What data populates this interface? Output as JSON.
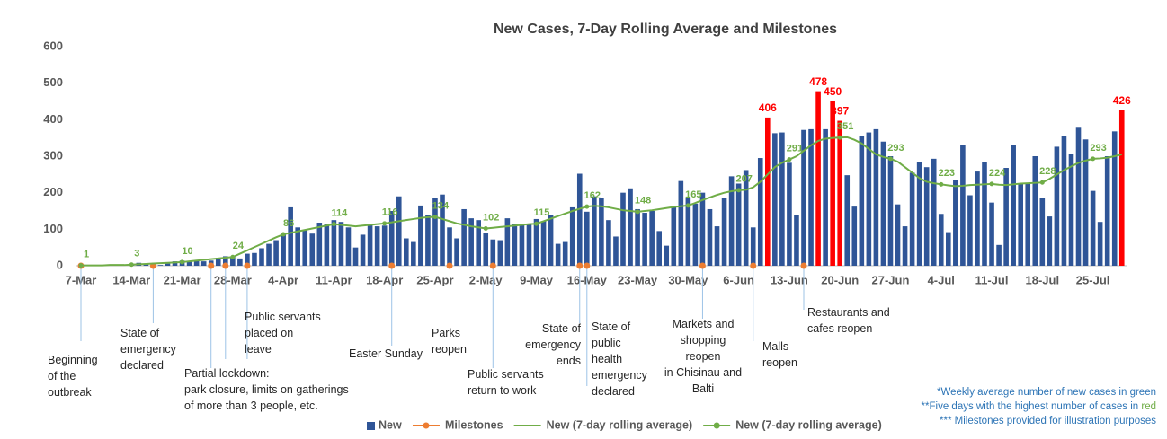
{
  "chart_data": {
    "type": "bar",
    "title": "New Cases, 7-Day Rolling Average and Milestones",
    "categories": [
      "7-Mar",
      null,
      null,
      null,
      null,
      null,
      null,
      "14-Mar",
      null,
      null,
      null,
      null,
      null,
      null,
      "21-Mar",
      null,
      null,
      null,
      null,
      null,
      null,
      "28-Mar",
      null,
      null,
      null,
      null,
      null,
      null,
      "4-Apr",
      null,
      null,
      null,
      null,
      null,
      null,
      "11-Apr",
      null,
      null,
      null,
      null,
      null,
      null,
      "18-Apr",
      null,
      null,
      null,
      null,
      null,
      null,
      "25-Apr",
      null,
      null,
      null,
      null,
      null,
      null,
      "2-May",
      null,
      null,
      null,
      null,
      null,
      null,
      "9-May",
      null,
      null,
      null,
      null,
      null,
      null,
      "16-May",
      null,
      null,
      null,
      null,
      null,
      null,
      "23-May",
      null,
      null,
      null,
      null,
      null,
      null,
      "30-May",
      null,
      null,
      null,
      null,
      null,
      null,
      "6-Jun",
      null,
      null,
      null,
      null,
      null,
      null,
      "13-Jun",
      null,
      null,
      null,
      null,
      null,
      null,
      "20-Jun",
      null,
      null,
      null,
      null,
      null,
      null,
      "27-Jun",
      null,
      null,
      null,
      null,
      null,
      null,
      "4-Jul",
      null,
      null,
      null,
      null,
      null,
      null,
      "11-Jul",
      null,
      null,
      null,
      null,
      null,
      null,
      "18-Jul",
      null,
      null,
      null,
      null,
      null,
      null,
      "25-Jul",
      null,
      null,
      null,
      null
    ],
    "ylim": [
      0,
      600
    ],
    "yticks": [
      0,
      100,
      200,
      300,
      400,
      500,
      600
    ],
    "series": [
      {
        "name": "New",
        "type": "bar",
        "color": "#2f5597",
        "label_color": "#ff0000",
        "values": [
          1,
          0,
          0,
          0,
          0,
          0,
          1,
          3,
          8,
          6,
          2,
          2,
          6,
          12,
          14,
          13,
          15,
          12,
          14,
          22,
          26,
          25,
          20,
          33,
          35,
          48,
          60,
          70,
          85,
          160,
          105,
          98,
          88,
          118,
          115,
          125,
          120,
          105,
          50,
          85,
          115,
          108,
          110,
          150,
          190,
          75,
          65,
          165,
          140,
          185,
          195,
          105,
          75,
          155,
          130,
          125,
          90,
          72,
          70,
          130,
          115,
          112,
          115,
          128,
          122,
          140,
          60,
          65,
          160,
          252,
          148,
          190,
          185,
          125,
          80,
          200,
          212,
          155,
          145,
          150,
          95,
          55,
          160,
          232,
          188,
          170,
          200,
          155,
          108,
          185,
          245,
          225,
          262,
          105,
          295,
          406,
          363,
          365,
          282,
          138,
          372,
          374,
          478,
          374,
          450,
          397,
          248,
          162,
          355,
          365,
          374,
          340,
          300,
          168,
          108,
          255,
          283,
          270,
          293,
          142,
          92,
          235,
          330,
          193,
          258,
          285,
          173,
          57,
          268,
          330,
          226,
          226,
          300,
          185,
          135,
          326,
          356,
          305,
          378,
          346,
          205,
          120,
          300,
          368,
          426
        ],
        "colors": [
          "#2f5597",
          "#2f5597",
          "#2f5597",
          "#2f5597",
          "#2f5597",
          "#2f5597",
          "#2f5597",
          "#2f5597",
          "#2f5597",
          "#2f5597",
          "#2f5597",
          "#2f5597",
          "#2f5597",
          "#2f5597",
          "#2f5597",
          "#2f5597",
          "#2f5597",
          "#2f5597",
          "#2f5597",
          "#2f5597",
          "#2f5597",
          "#2f5597",
          "#2f5597",
          "#2f5597",
          "#2f5597",
          "#2f5597",
          "#2f5597",
          "#2f5597",
          "#2f5597",
          "#2f5597",
          "#2f5597",
          "#2f5597",
          "#2f5597",
          "#2f5597",
          "#2f5597",
          "#2f5597",
          "#2f5597",
          "#2f5597",
          "#2f5597",
          "#2f5597",
          "#2f5597",
          "#2f5597",
          "#2f5597",
          "#2f5597",
          "#2f5597",
          "#2f5597",
          "#2f5597",
          "#2f5597",
          "#2f5597",
          "#2f5597",
          "#2f5597",
          "#2f5597",
          "#2f5597",
          "#2f5597",
          "#2f5597",
          "#2f5597",
          "#2f5597",
          "#2f5597",
          "#2f5597",
          "#2f5597",
          "#2f5597",
          "#2f5597",
          "#2f5597",
          "#2f5597",
          "#2f5597",
          "#2f5597",
          "#2f5597",
          "#2f5597",
          "#2f5597",
          "#2f5597",
          "#2f5597",
          "#2f5597",
          "#2f5597",
          "#2f5597",
          "#2f5597",
          "#2f5597",
          "#2f5597",
          "#2f5597",
          "#2f5597",
          "#2f5597",
          "#2f5597",
          "#2f5597",
          "#2f5597",
          "#2f5597",
          "#2f5597",
          "#2f5597",
          "#2f5597",
          "#2f5597",
          "#2f5597",
          "#2f5597",
          "#2f5597",
          "#2f5597",
          "#2f5597",
          "#2f5597",
          "#2f5597",
          "#ff0000",
          "#2f5597",
          "#2f5597",
          "#2f5597",
          "#2f5597",
          "#2f5597",
          "#2f5597",
          "#ff0000",
          "#2f5597",
          "#ff0000",
          "#ff0000",
          "#2f5597",
          "#2f5597",
          "#2f5597",
          "#2f5597",
          "#2f5597",
          "#2f5597",
          "#2f5597",
          "#2f5597",
          "#2f5597",
          "#2f5597",
          "#2f5597",
          "#2f5597",
          "#2f5597",
          "#2f5597",
          "#2f5597",
          "#2f5597",
          "#2f5597",
          "#2f5597",
          "#2f5597",
          "#2f5597",
          "#2f5597",
          "#2f5597",
          "#2f5597",
          "#2f5597",
          "#2f5597",
          "#2f5597",
          "#2f5597",
          "#2f5597",
          "#2f5597",
          "#2f5597",
          "#2f5597",
          "#2f5597",
          "#2f5597",
          "#2f5597",
          "#2f5597",
          "#2f5597",
          "#2f5597",
          "#2f5597",
          "#ff0000"
        ]
      },
      {
        "name": "Milestones",
        "type": "milestone",
        "color": "#ed7d31",
        "values": [
          0,
          null,
          null,
          null,
          null,
          null,
          null,
          null,
          null,
          null,
          0,
          null,
          null,
          null,
          null,
          null,
          null,
          null,
          0,
          null,
          0,
          null,
          null,
          0,
          null,
          null,
          null,
          null,
          null,
          null,
          null,
          null,
          null,
          null,
          null,
          null,
          null,
          null,
          null,
          null,
          null,
          null,
          null,
          0,
          null,
          null,
          null,
          null,
          null,
          null,
          null,
          0,
          null,
          null,
          null,
          null,
          null,
          0,
          null,
          null,
          null,
          null,
          null,
          null,
          null,
          null,
          null,
          null,
          null,
          0,
          0,
          null,
          null,
          null,
          null,
          null,
          null,
          null,
          null,
          null,
          null,
          null,
          null,
          null,
          null,
          null,
          0,
          null,
          null,
          null,
          null,
          null,
          null,
          0,
          null,
          null,
          null,
          null,
          null,
          null,
          0,
          null,
          null,
          null,
          null,
          null,
          null,
          null,
          null,
          null,
          null,
          null,
          null,
          null,
          null,
          null,
          null,
          null,
          null,
          null,
          null,
          null,
          null,
          null,
          null,
          null,
          null,
          null,
          null,
          null,
          null,
          null,
          null,
          null,
          null,
          null,
          null,
          null,
          null,
          null,
          null,
          null,
          null,
          null,
          null
        ],
        "value_labels": [
          "Beginning\nof the\noutbreak",
          null,
          null,
          null,
          null,
          null,
          null,
          null,
          null,
          null,
          "State of\nemergency\ndeclared",
          null,
          null,
          null,
          null,
          null,
          null,
          null,
          "Partial lockdown:\npark closure, limits on gatherings\nof more than 3 people, etc.",
          null,
          null,
          null,
          null,
          "Public servants\nplaced on\nleave",
          null,
          null,
          null,
          null,
          null,
          null,
          null,
          null,
          null,
          null,
          null,
          null,
          null,
          null,
          null,
          null,
          null,
          null,
          null,
          "Easter Sunday",
          null,
          null,
          null,
          null,
          null,
          null,
          null,
          "Parks\nreopen",
          null,
          null,
          null,
          null,
          null,
          "Public servants\nreturn to work",
          null,
          null,
          null,
          null,
          null,
          null,
          null,
          null,
          null,
          null,
          null,
          "State of\nemergency\nends",
          "State of\npublic\nhealth\nemergency\ndeclared",
          null,
          null,
          null,
          null,
          null,
          null,
          null,
          null,
          null,
          null,
          null,
          null,
          null,
          null,
          null,
          "Markets and\nshopping\nreopen\nin Chisinau and\nBalti",
          null,
          null,
          null,
          null,
          null,
          null,
          "Malls\nreopen",
          null,
          null,
          null,
          null,
          null,
          null,
          "Restaurants and\ncafes reopen",
          null,
          null,
          null,
          null,
          null,
          null,
          null,
          null,
          null,
          null,
          null,
          null,
          null,
          null,
          null,
          null,
          null,
          null,
          null,
          null,
          null,
          null,
          null,
          null,
          null,
          null,
          null,
          null,
          null,
          null,
          null,
          null,
          null,
          null,
          null,
          null,
          null,
          null,
          null,
          null,
          null,
          null,
          null,
          null
        ]
      },
      {
        "name": "New (7-day rolling average)",
        "type": "line",
        "color": "#70ad47",
        "values": [
          1,
          1,
          1,
          1,
          2,
          2,
          2,
          3,
          4,
          5,
          6,
          7,
          8,
          9,
          10,
          12,
          14,
          16,
          18,
          20,
          22,
          24,
          33,
          42,
          51,
          60,
          69,
          78,
          86,
          90,
          94,
          98,
          102,
          106,
          110,
          114,
          112,
          110,
          108,
          110,
          112,
          114,
          116,
          119,
          122,
          125,
          128,
          131,
          133,
          134,
          128,
          122,
          116,
          112,
          108,
          105,
          102,
          104,
          106,
          108,
          110,
          112,
          114,
          115,
          122,
          129,
          136,
          143,
          150,
          156,
          162,
          164,
          163,
          160,
          156,
          152,
          150,
          148,
          150,
          152,
          155,
          158,
          161,
          163,
          165,
          172,
          180,
          187,
          194,
          200,
          204,
          207,
          208,
          215,
          230,
          250,
          270,
          282,
          291,
          300,
          315,
          330,
          342,
          348,
          350,
          351,
          352,
          345,
          335,
          320,
          305,
          298,
          293,
          285,
          270,
          255,
          240,
          230,
          226,
          223,
          220,
          218,
          219,
          221,
          222,
          223,
          224,
          222,
          221,
          223,
          225,
          226,
          227,
          228,
          238,
          250,
          262,
          272,
          282,
          288,
          293,
          294,
          296,
          300,
          305
        ]
      },
      {
        "name": "New (7-day rolling average)",
        "type": "marker",
        "color": "#70ad47",
        "values": [
          1,
          null,
          null,
          null,
          null,
          null,
          null,
          3,
          null,
          null,
          null,
          null,
          null,
          null,
          10,
          null,
          null,
          null,
          null,
          null,
          null,
          24,
          null,
          null,
          null,
          null,
          null,
          null,
          86,
          null,
          null,
          null,
          null,
          null,
          null,
          114,
          null,
          null,
          null,
          null,
          null,
          null,
          116,
          null,
          null,
          null,
          null,
          null,
          null,
          134,
          null,
          null,
          null,
          null,
          null,
          null,
          102,
          null,
          null,
          null,
          null,
          null,
          null,
          115,
          null,
          null,
          null,
          null,
          null,
          null,
          162,
          null,
          null,
          null,
          null,
          null,
          null,
          148,
          null,
          null,
          null,
          null,
          null,
          null,
          165,
          null,
          null,
          null,
          null,
          null,
          null,
          207,
          null,
          null,
          null,
          null,
          null,
          null,
          291,
          null,
          null,
          null,
          null,
          null,
          null,
          351,
          null,
          null,
          null,
          null,
          null,
          null,
          293,
          null,
          null,
          null,
          null,
          null,
          null,
          223,
          null,
          null,
          null,
          null,
          null,
          null,
          224,
          null,
          null,
          null,
          null,
          null,
          null,
          228,
          null,
          null,
          null,
          null,
          null,
          null,
          293,
          null,
          null,
          null,
          null
        ]
      }
    ],
    "notes": [
      [
        "*Weekly average number of new cases in ",
        "green"
      ],
      [
        "**Five days with the highest number of cases in ",
        "red"
      ],
      [
        "*** Milestones provided for illustration purposes"
      ]
    ],
    "note_colors": [
      "#2e75b6",
      "#70ad47",
      "#ff0000"
    ]
  }
}
